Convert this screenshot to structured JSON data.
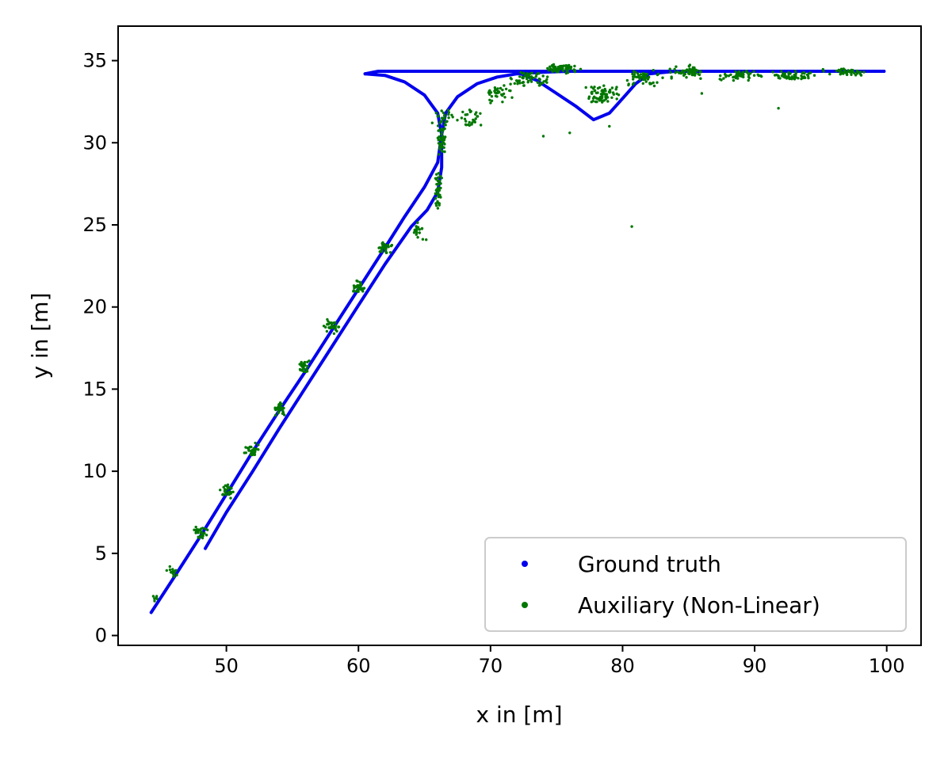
{
  "chart_data": {
    "type": "scatter",
    "xlabel": "x in [m]",
    "ylabel": "y in [m]",
    "xlim": [
      41.8,
      102.6
    ],
    "ylim": [
      -0.6,
      37.1
    ],
    "xticks": [
      50,
      60,
      70,
      80,
      90,
      100
    ],
    "yticks": [
      0,
      5,
      10,
      15,
      20,
      25,
      30,
      35
    ],
    "grid": false,
    "legend_position": "bottom-right",
    "series": [
      {
        "name": "Ground truth",
        "color": "#0000ee",
        "marker": "dense-dots-forming-path",
        "paths": [
          [
            [
              44.3,
              1.4
            ],
            [
              46.0,
              3.5
            ],
            [
              48.0,
              6.0
            ],
            [
              50.0,
              8.6
            ],
            [
              52.0,
              11.2
            ],
            [
              54.0,
              13.7
            ],
            [
              56.0,
              16.1
            ],
            [
              58.0,
              18.6
            ],
            [
              60.0,
              21.1
            ],
            [
              62.0,
              23.6
            ],
            [
              63.5,
              25.5
            ],
            [
              65.0,
              27.3
            ],
            [
              66.0,
              28.8
            ],
            [
              66.3,
              30.5
            ],
            [
              66.6,
              31.8
            ],
            [
              67.5,
              32.8
            ],
            [
              69.0,
              33.6
            ],
            [
              70.5,
              34.0
            ],
            [
              72.0,
              34.2
            ],
            [
              74.0,
              34.3
            ],
            [
              76.0,
              34.35
            ],
            [
              78.0,
              34.35
            ],
            [
              80.0,
              34.35
            ],
            [
              84.0,
              34.35
            ],
            [
              90.0,
              34.35
            ],
            [
              95.0,
              34.35
            ],
            [
              99.8,
              34.35
            ]
          ],
          [
            [
              48.4,
              5.3
            ],
            [
              50.0,
              7.5
            ],
            [
              52.0,
              10.0
            ],
            [
              54.0,
              12.6
            ],
            [
              56.0,
              15.1
            ],
            [
              58.0,
              17.6
            ],
            [
              60.0,
              20.1
            ],
            [
              62.0,
              22.6
            ],
            [
              64.0,
              24.9
            ],
            [
              65.2,
              25.9
            ],
            [
              66.0,
              27.0
            ],
            [
              66.3,
              28.5
            ],
            [
              66.3,
              30.5
            ],
            [
              66.0,
              31.8
            ],
            [
              65.0,
              32.9
            ],
            [
              63.5,
              33.7
            ],
            [
              62.0,
              34.1
            ],
            [
              60.5,
              34.2
            ]
          ],
          [
            [
              60.5,
              34.2
            ],
            [
              61.5,
              34.35
            ],
            [
              64.0,
              34.35
            ],
            [
              68.0,
              34.35
            ],
            [
              72.0,
              34.35
            ],
            [
              76.0,
              34.35
            ],
            [
              80.0,
              34.35
            ],
            [
              85.0,
              34.35
            ],
            [
              90.0,
              34.35
            ],
            [
              95.0,
              34.35
            ],
            [
              99.8,
              34.35
            ]
          ],
          [
            [
              72.0,
              34.3
            ],
            [
              73.5,
              33.8
            ],
            [
              75.0,
              33.0
            ],
            [
              76.5,
              32.2
            ],
            [
              77.8,
              31.4
            ],
            [
              79.0,
              31.8
            ],
            [
              80.0,
              32.7
            ],
            [
              81.0,
              33.6
            ],
            [
              82.0,
              34.2
            ],
            [
              84.0,
              34.35
            ]
          ]
        ]
      },
      {
        "name": "Auxiliary (Non-Linear)",
        "color": "#007700",
        "marker": "dot",
        "clusters": [
          {
            "x": 44.6,
            "y": 2.3,
            "sx": 0.25,
            "sy": 0.25,
            "n": 8
          },
          {
            "x": 46.0,
            "y": 3.8,
            "sx": 0.4,
            "sy": 0.35,
            "n": 18
          },
          {
            "x": 48.0,
            "y": 6.3,
            "sx": 0.5,
            "sy": 0.35,
            "n": 28
          },
          {
            "x": 50.0,
            "y": 8.8,
            "sx": 0.5,
            "sy": 0.35,
            "n": 30
          },
          {
            "x": 52.0,
            "y": 11.3,
            "sx": 0.5,
            "sy": 0.35,
            "n": 30
          },
          {
            "x": 54.0,
            "y": 13.8,
            "sx": 0.5,
            "sy": 0.35,
            "n": 30
          },
          {
            "x": 56.0,
            "y": 16.3,
            "sx": 0.5,
            "sy": 0.35,
            "n": 30
          },
          {
            "x": 58.0,
            "y": 18.8,
            "sx": 0.5,
            "sy": 0.35,
            "n": 30
          },
          {
            "x": 60.0,
            "y": 21.2,
            "sx": 0.5,
            "sy": 0.35,
            "n": 30
          },
          {
            "x": 62.0,
            "y": 23.6,
            "sx": 0.5,
            "sy": 0.4,
            "n": 30
          },
          {
            "x": 64.5,
            "y": 24.6,
            "sx": 0.6,
            "sy": 0.5,
            "n": 18
          },
          {
            "x": 66.0,
            "y": 27.0,
            "sx": 0.25,
            "sy": 1.1,
            "n": 40
          },
          {
            "x": 66.3,
            "y": 30.0,
            "sx": 0.3,
            "sy": 1.1,
            "n": 40
          },
          {
            "x": 66.5,
            "y": 31.5,
            "sx": 0.8,
            "sy": 0.5,
            "n": 28
          },
          {
            "x": 68.5,
            "y": 31.5,
            "sx": 1.0,
            "sy": 0.6,
            "n": 28
          },
          {
            "x": 70.5,
            "y": 33.0,
            "sx": 1.0,
            "sy": 0.5,
            "n": 35
          },
          {
            "x": 73.0,
            "y": 33.9,
            "sx": 1.2,
            "sy": 0.5,
            "n": 60
          },
          {
            "x": 75.5,
            "y": 34.5,
            "sx": 1.2,
            "sy": 0.3,
            "n": 70
          },
          {
            "x": 78.5,
            "y": 32.9,
            "sx": 1.3,
            "sy": 0.6,
            "n": 70
          },
          {
            "x": 81.5,
            "y": 34.0,
            "sx": 1.2,
            "sy": 0.5,
            "n": 55
          },
          {
            "x": 85.0,
            "y": 34.3,
            "sx": 1.5,
            "sy": 0.3,
            "n": 55
          },
          {
            "x": 89.0,
            "y": 34.1,
            "sx": 1.5,
            "sy": 0.3,
            "n": 60
          },
          {
            "x": 93.0,
            "y": 34.1,
            "sx": 1.5,
            "sy": 0.25,
            "n": 55
          },
          {
            "x": 97.0,
            "y": 34.3,
            "sx": 1.5,
            "sy": 0.2,
            "n": 45
          }
        ],
        "outliers": [
          [
            80.7,
            24.9
          ],
          [
            91.8,
            32.1
          ],
          [
            74.0,
            30.4
          ],
          [
            79.0,
            31.0
          ],
          [
            76.0,
            30.6
          ],
          [
            86.0,
            33.0
          ]
        ]
      }
    ]
  }
}
